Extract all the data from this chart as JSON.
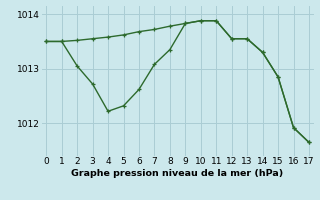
{
  "title": "Graphe pression niveau de la mer (hPa)",
  "background_color": "#cce8ec",
  "line_color": "#2d6a2d",
  "grid_color": "#aacdd4",
  "series1_x": [
    0,
    1,
    2,
    3,
    4,
    5,
    6,
    7,
    8,
    9,
    10,
    11,
    12,
    13,
    14,
    15,
    16,
    17
  ],
  "series1_y": [
    1013.5,
    1013.5,
    1013.52,
    1013.55,
    1013.58,
    1013.62,
    1013.68,
    1013.72,
    1013.78,
    1013.83,
    1013.88,
    1013.88,
    1013.55,
    1013.55,
    1013.3,
    1012.85,
    1011.92,
    1011.65
  ],
  "series2_x": [
    0,
    1,
    2,
    3,
    4,
    5,
    6,
    7,
    8,
    9,
    10,
    11,
    12,
    13,
    14,
    15,
    16,
    17
  ],
  "series2_y": [
    1013.5,
    1013.5,
    1013.05,
    1012.72,
    1012.22,
    1012.32,
    1012.62,
    1013.08,
    1013.35,
    1013.83,
    1013.88,
    1013.88,
    1013.55,
    1013.55,
    1013.3,
    1012.85,
    1011.92,
    1011.65
  ],
  "ylim": [
    1011.4,
    1014.15
  ],
  "xlim": [
    -0.3,
    17.3
  ],
  "yticks": [
    1012,
    1013,
    1014
  ],
  "xticks": [
    0,
    1,
    2,
    3,
    4,
    5,
    6,
    7,
    8,
    9,
    10,
    11,
    12,
    13,
    14,
    15,
    16,
    17
  ],
  "tick_fontsize": 6.5,
  "title_fontsize": 6.8,
  "marker_size": 3.0,
  "linewidth": 1.0
}
